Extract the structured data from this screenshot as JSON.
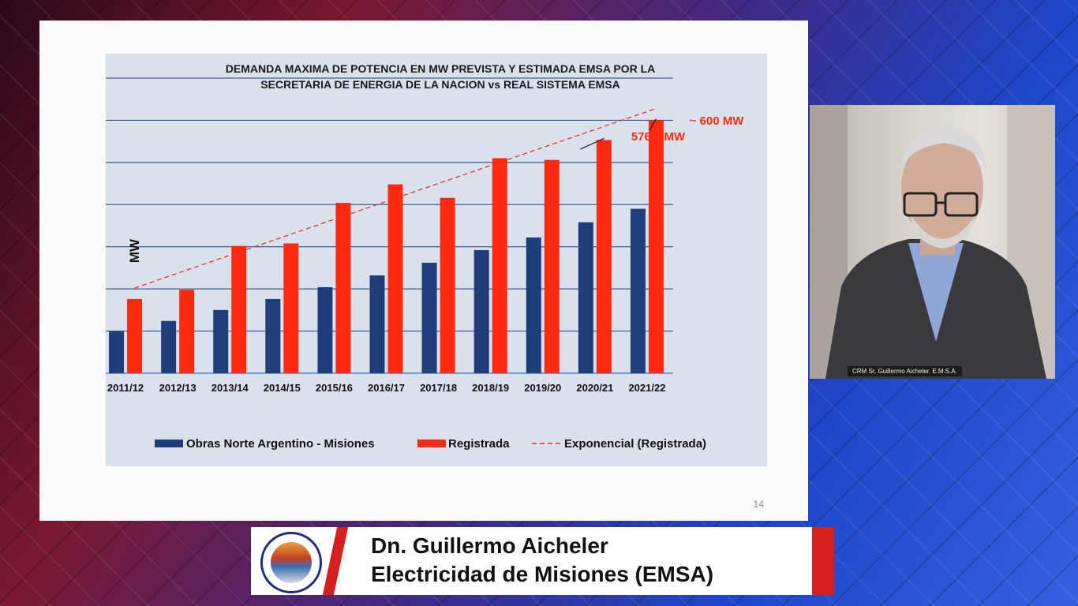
{
  "slide": {
    "page_number": "14"
  },
  "chart_data": {
    "type": "bar",
    "title_line1": "DEMANDA MAXIMA DE POTENCIA EN MW PREVISTA Y ESTIMADA EMSA POR LA",
    "title_line2": "SECRETARIA DE ENERGIA DE LA NACION vs REAL SISTEMA EMSA",
    "ylabel": "MW",
    "ylim": [
      300,
      650
    ],
    "yticks": [
      650,
      600,
      550,
      500,
      450,
      400,
      350,
      300
    ],
    "grid": true,
    "legend_position": "bottom",
    "categories": [
      "2011/12",
      "2012/13",
      "2013/14",
      "2014/15",
      "2015/16",
      "2016/17",
      "2017/18",
      "2018/19",
      "2019/20",
      "2020/21",
      "2021/22"
    ],
    "series": [
      {
        "name": "Obras Norte Argentino - Misiones",
        "color": "#1f3e79",
        "values": [
          350,
          362,
          375,
          388,
          402,
          416,
          431,
          446,
          461,
          479,
          495
        ]
      },
      {
        "name": "Registrada",
        "color": "#ff2a10",
        "values": [
          388,
          399,
          451,
          454,
          502,
          524,
          508,
          555,
          553,
          576.6,
          600
        ]
      }
    ],
    "trend": {
      "name": "Exponencial (Registrada)",
      "color": "#e8302a",
      "start": 401,
      "end": 614
    },
    "annotations": [
      {
        "text": "576,6 MW",
        "category_index": 9
      },
      {
        "text": "~ 600 MW",
        "category_index": 10
      }
    ]
  },
  "video": {
    "caption": "CRM Sr. Guillermo Aicheler. E.M.S.A."
  },
  "banner": {
    "name": "Dn. Guillermo Aicheler",
    "organization": "Electricidad de Misiones (EMSA)"
  }
}
